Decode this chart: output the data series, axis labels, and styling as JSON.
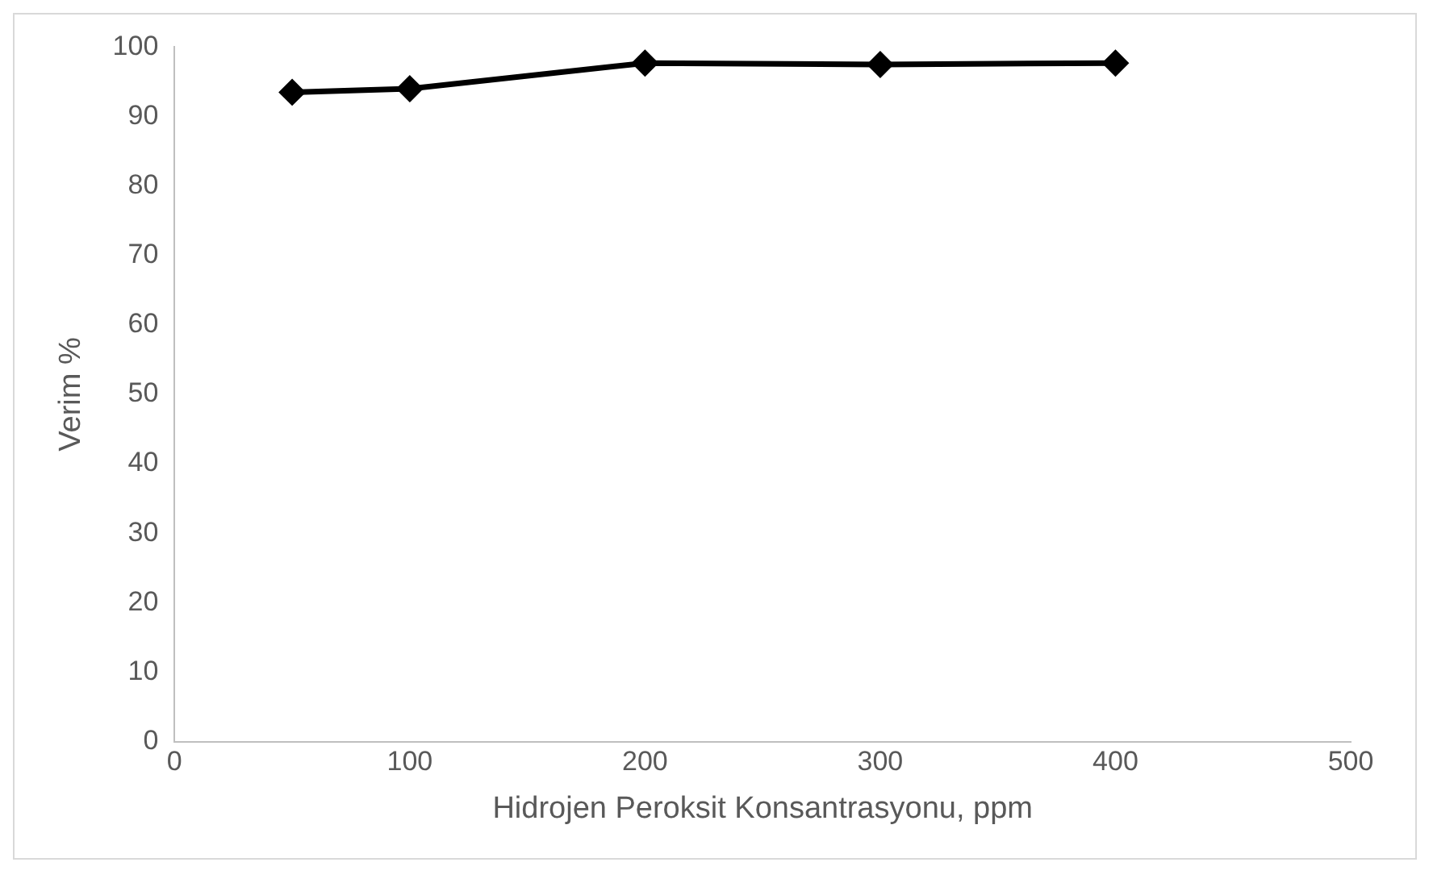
{
  "chart_data": {
    "type": "line",
    "xlabel": "Hidrojen Peroksit Konsantrasyonu, ppm",
    "ylabel": "Verim %",
    "x": [
      50,
      100,
      200,
      300,
      400
    ],
    "series": [
      {
        "color": "#000000",
        "values": [
          93.5,
          94,
          97.7,
          97.5,
          97.7
        ]
      }
    ],
    "xlim": [
      0,
      500
    ],
    "xticks": [
      0,
      100,
      200,
      300,
      400,
      500
    ],
    "ylim": [
      0,
      100
    ],
    "yticks": [
      0,
      10,
      20,
      30,
      40,
      50,
      60,
      70,
      80,
      90,
      100
    ],
    "grid": false,
    "legend": false,
    "marker": "diamond",
    "line_style": "solid"
  }
}
